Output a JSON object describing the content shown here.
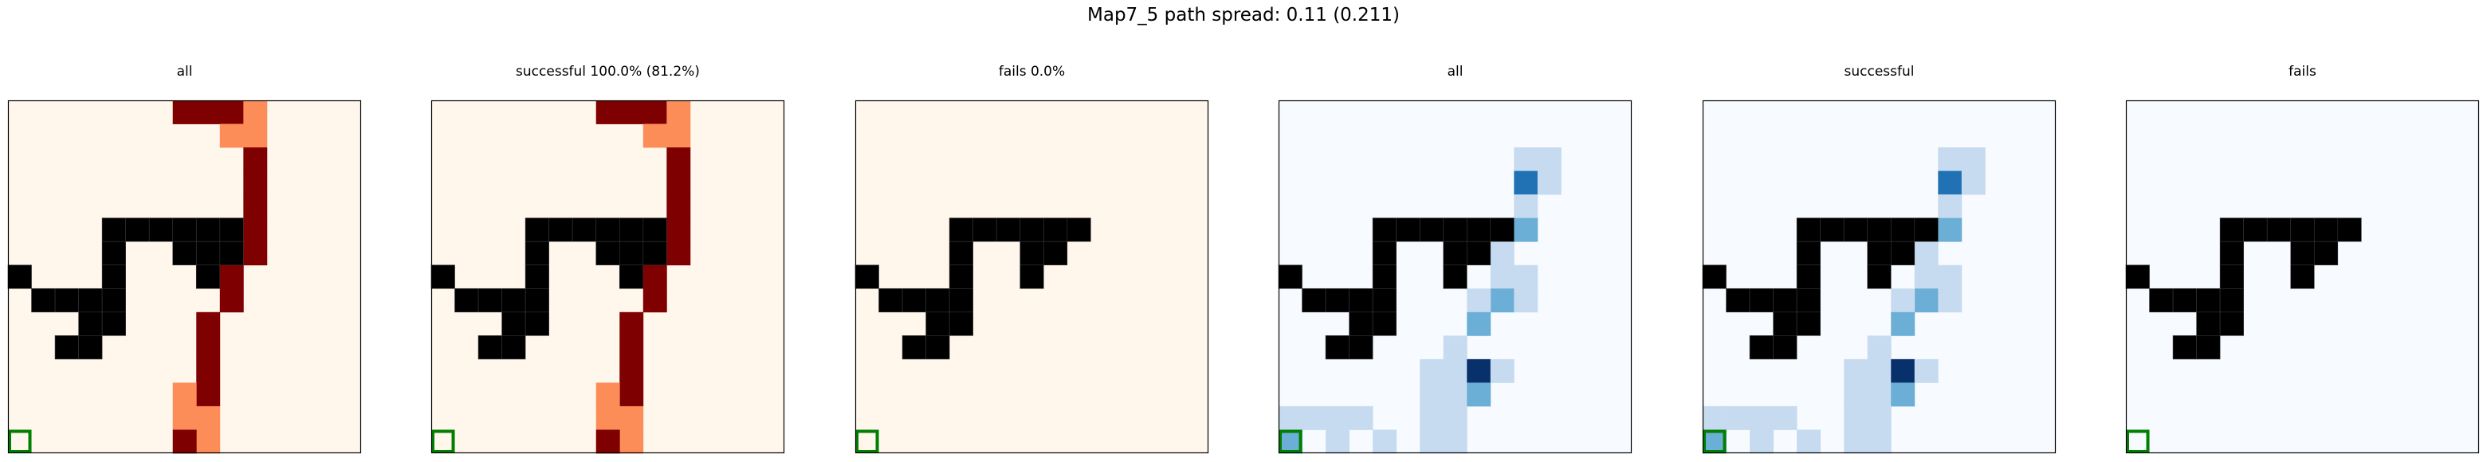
{
  "figure": {
    "suptitle": "Map7_5 path spread: 0.11 (0.211)"
  },
  "chart_data": [
    {
      "type": "heatmap",
      "title": "all",
      "colormap": "OrRd",
      "grid_size": [
        15,
        15
      ],
      "start_cell": [
        0,
        14
      ],
      "start_color": "#007f00",
      "obstacles": [
        [
          4,
          5
        ],
        [
          5,
          5
        ],
        [
          6,
          5
        ],
        [
          7,
          5
        ],
        [
          8,
          5
        ],
        [
          9,
          5
        ],
        [
          0,
          7
        ],
        [
          1,
          8
        ],
        [
          2,
          8
        ],
        [
          3,
          8
        ],
        [
          4,
          8
        ],
        [
          3,
          9
        ],
        [
          4,
          9
        ],
        [
          2,
          10
        ],
        [
          3,
          10
        ],
        [
          4,
          6
        ],
        [
          4,
          7
        ],
        [
          8,
          7
        ],
        [
          7,
          6
        ],
        [
          8,
          6
        ],
        [
          9,
          6
        ]
      ],
      "cells": [
        [
          7,
          0,
          1.0
        ],
        [
          8,
          0,
          1.0
        ],
        [
          9,
          0,
          1.0
        ],
        [
          10,
          0,
          0.45
        ],
        [
          9,
          1,
          0.45
        ],
        [
          10,
          1,
          0.45
        ],
        [
          10,
          2,
          1.0
        ],
        [
          10,
          3,
          1.0
        ],
        [
          10,
          4,
          1.0
        ],
        [
          10,
          5,
          1.0
        ],
        [
          10,
          6,
          1.0
        ],
        [
          9,
          7,
          1.0
        ],
        [
          9,
          8,
          1.0
        ],
        [
          8,
          9,
          1.0
        ],
        [
          8,
          10,
          1.0
        ],
        [
          8,
          11,
          1.0
        ],
        [
          8,
          12,
          1.0
        ],
        [
          7,
          12,
          0.45
        ],
        [
          8,
          13,
          0.45
        ],
        [
          7,
          13,
          0.45
        ],
        [
          8,
          14,
          0.45
        ],
        [
          7,
          14,
          1.0
        ]
      ]
    },
    {
      "type": "heatmap",
      "title": "successful 100.0% (81.2%)",
      "colormap": "OrRd",
      "grid_size": [
        15,
        15
      ],
      "start_cell": [
        0,
        14
      ],
      "start_color": "#007f00",
      "obstacles": [
        [
          4,
          5
        ],
        [
          5,
          5
        ],
        [
          6,
          5
        ],
        [
          7,
          5
        ],
        [
          8,
          5
        ],
        [
          9,
          5
        ],
        [
          0,
          7
        ],
        [
          1,
          8
        ],
        [
          2,
          8
        ],
        [
          3,
          8
        ],
        [
          4,
          8
        ],
        [
          3,
          9
        ],
        [
          4,
          9
        ],
        [
          2,
          10
        ],
        [
          3,
          10
        ],
        [
          4,
          6
        ],
        [
          4,
          7
        ],
        [
          8,
          7
        ],
        [
          7,
          6
        ],
        [
          8,
          6
        ],
        [
          9,
          6
        ]
      ],
      "cells": [
        [
          7,
          0,
          1.0
        ],
        [
          8,
          0,
          1.0
        ],
        [
          9,
          0,
          1.0
        ],
        [
          10,
          0,
          0.45
        ],
        [
          9,
          1,
          0.45
        ],
        [
          10,
          1,
          0.45
        ],
        [
          10,
          2,
          1.0
        ],
        [
          10,
          3,
          1.0
        ],
        [
          10,
          4,
          1.0
        ],
        [
          10,
          5,
          1.0
        ],
        [
          10,
          6,
          1.0
        ],
        [
          9,
          7,
          1.0
        ],
        [
          9,
          8,
          1.0
        ],
        [
          8,
          9,
          1.0
        ],
        [
          8,
          10,
          1.0
        ],
        [
          8,
          11,
          1.0
        ],
        [
          8,
          12,
          1.0
        ],
        [
          7,
          12,
          0.45
        ],
        [
          8,
          13,
          0.45
        ],
        [
          7,
          13,
          0.45
        ],
        [
          8,
          14,
          0.45
        ],
        [
          7,
          14,
          1.0
        ]
      ]
    },
    {
      "type": "heatmap",
      "title": "fails 0.0%",
      "colormap": "OrRd",
      "grid_size": [
        15,
        15
      ],
      "start_cell": [
        0,
        14
      ],
      "start_color": "#007f00",
      "obstacles": [
        [
          4,
          5
        ],
        [
          5,
          5
        ],
        [
          6,
          5
        ],
        [
          7,
          5
        ],
        [
          8,
          5
        ],
        [
          9,
          5
        ],
        [
          0,
          7
        ],
        [
          1,
          8
        ],
        [
          2,
          8
        ],
        [
          3,
          8
        ],
        [
          4,
          8
        ],
        [
          3,
          9
        ],
        [
          4,
          9
        ],
        [
          2,
          10
        ],
        [
          3,
          10
        ],
        [
          4,
          6
        ],
        [
          4,
          7
        ],
        [
          7,
          7
        ],
        [
          7,
          6
        ],
        [
          8,
          6
        ]
      ],
      "cells": []
    },
    {
      "type": "heatmap",
      "title": "all",
      "colormap": "Blues",
      "grid_size": [
        15,
        15
      ],
      "start_cell": [
        0,
        14
      ],
      "start_color": "#007f00",
      "obstacles": [
        [
          4,
          5
        ],
        [
          5,
          5
        ],
        [
          6,
          5
        ],
        [
          7,
          5
        ],
        [
          8,
          5
        ],
        [
          9,
          5
        ],
        [
          0,
          7
        ],
        [
          1,
          8
        ],
        [
          2,
          8
        ],
        [
          3,
          8
        ],
        [
          4,
          8
        ],
        [
          3,
          9
        ],
        [
          4,
          9
        ],
        [
          2,
          10
        ],
        [
          3,
          10
        ],
        [
          4,
          6
        ],
        [
          4,
          7
        ],
        [
          7,
          7
        ],
        [
          7,
          6
        ],
        [
          8,
          6
        ]
      ],
      "cells": [
        [
          10,
          2,
          0.25
        ],
        [
          11,
          2,
          0.25
        ],
        [
          10,
          3,
          0.8
        ],
        [
          11,
          3,
          0.25
        ],
        [
          10,
          4,
          0.25
        ],
        [
          10,
          5,
          0.5
        ],
        [
          9,
          6,
          0.25
        ],
        [
          9,
          7,
          0.25
        ],
        [
          10,
          7,
          0.25
        ],
        [
          9,
          8,
          0.5
        ],
        [
          8,
          8,
          0.25
        ],
        [
          10,
          8,
          0.25
        ],
        [
          8,
          9,
          0.5
        ],
        [
          7,
          10,
          0.25
        ],
        [
          7,
          11,
          0.25
        ],
        [
          6,
          11,
          0.25
        ],
        [
          8,
          11,
          1.0
        ],
        [
          9,
          11,
          0.25
        ],
        [
          6,
          12,
          0.25
        ],
        [
          7,
          12,
          0.25
        ],
        [
          8,
          12,
          0.5
        ],
        [
          6,
          13,
          0.25
        ],
        [
          7,
          13,
          0.25
        ],
        [
          6,
          14,
          0.25
        ],
        [
          7,
          14,
          0.25
        ],
        [
          0,
          13,
          0.25
        ],
        [
          1,
          13,
          0.25
        ],
        [
          2,
          13,
          0.25
        ],
        [
          3,
          13,
          0.25
        ],
        [
          0,
          14,
          0.5
        ],
        [
          2,
          14,
          0.25
        ],
        [
          4,
          14,
          0.25
        ]
      ]
    },
    {
      "type": "heatmap",
      "title": "successful",
      "colormap": "Blues",
      "grid_size": [
        15,
        15
      ],
      "start_cell": [
        0,
        14
      ],
      "start_color": "#007f00",
      "obstacles": [
        [
          4,
          5
        ],
        [
          5,
          5
        ],
        [
          6,
          5
        ],
        [
          7,
          5
        ],
        [
          8,
          5
        ],
        [
          9,
          5
        ],
        [
          0,
          7
        ],
        [
          1,
          8
        ],
        [
          2,
          8
        ],
        [
          3,
          8
        ],
        [
          4,
          8
        ],
        [
          3,
          9
        ],
        [
          4,
          9
        ],
        [
          2,
          10
        ],
        [
          3,
          10
        ],
        [
          4,
          6
        ],
        [
          4,
          7
        ],
        [
          7,
          7
        ],
        [
          7,
          6
        ],
        [
          8,
          6
        ]
      ],
      "cells": [
        [
          10,
          2,
          0.25
        ],
        [
          11,
          2,
          0.25
        ],
        [
          10,
          3,
          0.8
        ],
        [
          11,
          3,
          0.25
        ],
        [
          10,
          4,
          0.25
        ],
        [
          10,
          5,
          0.5
        ],
        [
          9,
          6,
          0.25
        ],
        [
          9,
          7,
          0.25
        ],
        [
          10,
          7,
          0.25
        ],
        [
          9,
          8,
          0.5
        ],
        [
          8,
          8,
          0.25
        ],
        [
          10,
          8,
          0.25
        ],
        [
          8,
          9,
          0.5
        ],
        [
          7,
          10,
          0.25
        ],
        [
          7,
          11,
          0.25
        ],
        [
          6,
          11,
          0.25
        ],
        [
          8,
          11,
          1.0
        ],
        [
          9,
          11,
          0.25
        ],
        [
          6,
          12,
          0.25
        ],
        [
          7,
          12,
          0.25
        ],
        [
          8,
          12,
          0.5
        ],
        [
          6,
          13,
          0.25
        ],
        [
          7,
          13,
          0.25
        ],
        [
          6,
          14,
          0.25
        ],
        [
          7,
          14,
          0.25
        ],
        [
          0,
          13,
          0.25
        ],
        [
          1,
          13,
          0.25
        ],
        [
          2,
          13,
          0.25
        ],
        [
          3,
          13,
          0.25
        ],
        [
          0,
          14,
          0.5
        ],
        [
          2,
          14,
          0.25
        ],
        [
          4,
          14,
          0.25
        ]
      ]
    },
    {
      "type": "heatmap",
      "title": "fails",
      "colormap": "Blues",
      "grid_size": [
        15,
        15
      ],
      "start_cell": [
        0,
        14
      ],
      "start_color": "#007f00",
      "obstacles": [
        [
          4,
          5
        ],
        [
          5,
          5
        ],
        [
          6,
          5
        ],
        [
          7,
          5
        ],
        [
          8,
          5
        ],
        [
          9,
          5
        ],
        [
          0,
          7
        ],
        [
          1,
          8
        ],
        [
          2,
          8
        ],
        [
          3,
          8
        ],
        [
          4,
          8
        ],
        [
          3,
          9
        ],
        [
          4,
          9
        ],
        [
          2,
          10
        ],
        [
          3,
          10
        ],
        [
          4,
          6
        ],
        [
          4,
          7
        ],
        [
          7,
          7
        ],
        [
          7,
          6
        ],
        [
          8,
          6
        ]
      ],
      "cells": []
    }
  ]
}
